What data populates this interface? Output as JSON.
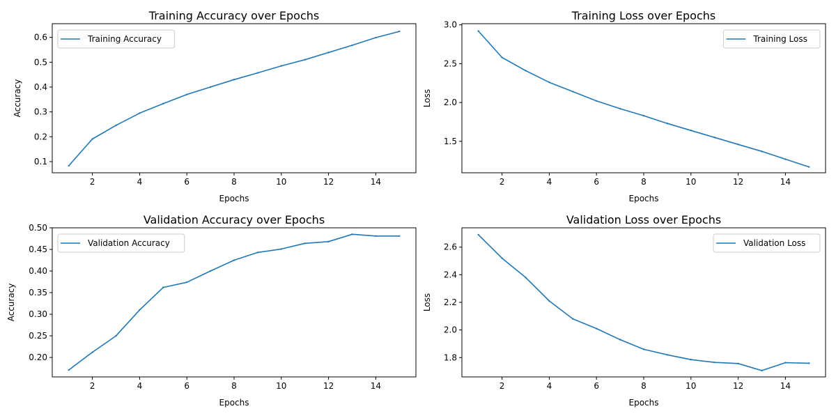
{
  "line_color": "#1f77b4",
  "chart_data": [
    {
      "type": "line",
      "title": "Training Accuracy over Epochs",
      "xlabel": "Epochs",
      "ylabel": "Accuracy",
      "xlim": [
        0.3,
        15.7
      ],
      "ylim": [
        0.055,
        0.655
      ],
      "xticks": [
        2,
        4,
        6,
        8,
        10,
        12,
        14
      ],
      "xtick_labels": [
        "2",
        "4",
        "6",
        "8",
        "10",
        "12",
        "14"
      ],
      "yticks": [
        0.1,
        0.2,
        0.3,
        0.4,
        0.5,
        0.6
      ],
      "ytick_labels": [
        "0.1",
        "0.2",
        "0.3",
        "0.4",
        "0.5",
        "0.6"
      ],
      "legend_position": "top-left",
      "series": [
        {
          "name": "Training Accuracy",
          "x": [
            1,
            2,
            3,
            4,
            5,
            6,
            7,
            8,
            9,
            10,
            11,
            12,
            13,
            14,
            15
          ],
          "values": [
            0.083,
            0.191,
            0.246,
            0.295,
            0.333,
            0.37,
            0.4,
            0.43,
            0.457,
            0.485,
            0.51,
            0.539,
            0.568,
            0.599,
            0.624
          ]
        }
      ]
    },
    {
      "type": "line",
      "title": "Training Loss over Epochs",
      "xlabel": "Epochs",
      "ylabel": "Loss",
      "xlim": [
        0.3,
        15.7
      ],
      "ylim": [
        1.095,
        3.015
      ],
      "xticks": [
        2,
        4,
        6,
        8,
        10,
        12,
        14
      ],
      "xtick_labels": [
        "2",
        "4",
        "6",
        "8",
        "10",
        "12",
        "14"
      ],
      "yticks": [
        1.5,
        2.0,
        2.5,
        3.0
      ],
      "ytick_labels": [
        "1.5",
        "2.0",
        "2.5",
        "3.0"
      ],
      "legend_position": "top-right",
      "series": [
        {
          "name": "Training Loss",
          "x": [
            1,
            2,
            3,
            4,
            5,
            6,
            7,
            8,
            9,
            10,
            11,
            12,
            13,
            14,
            15
          ],
          "values": [
            2.92,
            2.58,
            2.41,
            2.26,
            2.14,
            2.02,
            1.92,
            1.83,
            1.73,
            1.64,
            1.55,
            1.46,
            1.37,
            1.27,
            1.17
          ]
        }
      ]
    },
    {
      "type": "line",
      "title": "Validation Accuracy over Epochs",
      "xlabel": "Epochs",
      "ylabel": "Accuracy",
      "xlim": [
        0.3,
        15.7
      ],
      "ylim": [
        0.155,
        0.5
      ],
      "xticks": [
        2,
        4,
        6,
        8,
        10,
        12,
        14
      ],
      "xtick_labels": [
        "2",
        "4",
        "6",
        "8",
        "10",
        "12",
        "14"
      ],
      "yticks": [
        0.2,
        0.25,
        0.3,
        0.35,
        0.4,
        0.45,
        0.5
      ],
      "ytick_labels": [
        "0.20",
        "0.25",
        "0.30",
        "0.35",
        "0.40",
        "0.45",
        "0.50"
      ],
      "legend_position": "top-left",
      "series": [
        {
          "name": "Validation Accuracy",
          "x": [
            1,
            2,
            3,
            4,
            5,
            6,
            7,
            8,
            9,
            10,
            11,
            12,
            13,
            14,
            15
          ],
          "values": [
            0.171,
            0.212,
            0.25,
            0.31,
            0.362,
            0.374,
            0.4,
            0.425,
            0.443,
            0.451,
            0.464,
            0.468,
            0.485,
            0.481,
            0.481
          ]
        }
      ]
    },
    {
      "type": "line",
      "title": "Validation Loss over Epochs",
      "xlabel": "Epochs",
      "ylabel": "Loss",
      "xlim": [
        0.3,
        15.7
      ],
      "ylim": [
        1.66,
        2.74
      ],
      "xticks": [
        2,
        4,
        6,
        8,
        10,
        12,
        14
      ],
      "xtick_labels": [
        "2",
        "4",
        "6",
        "8",
        "10",
        "12",
        "14"
      ],
      "yticks": [
        1.8,
        2.0,
        2.2,
        2.4,
        2.6
      ],
      "ytick_labels": [
        "1.8",
        "2.0",
        "2.2",
        "2.4",
        "2.6"
      ],
      "legend_position": "top-right",
      "series": [
        {
          "name": "Validation Loss",
          "x": [
            1,
            2,
            3,
            4,
            5,
            6,
            7,
            8,
            9,
            10,
            11,
            12,
            13,
            14,
            15
          ],
          "values": [
            2.69,
            2.52,
            2.38,
            2.21,
            2.08,
            2.01,
            1.93,
            1.86,
            1.82,
            1.785,
            1.765,
            1.757,
            1.706,
            1.763,
            1.759
          ]
        }
      ]
    }
  ]
}
